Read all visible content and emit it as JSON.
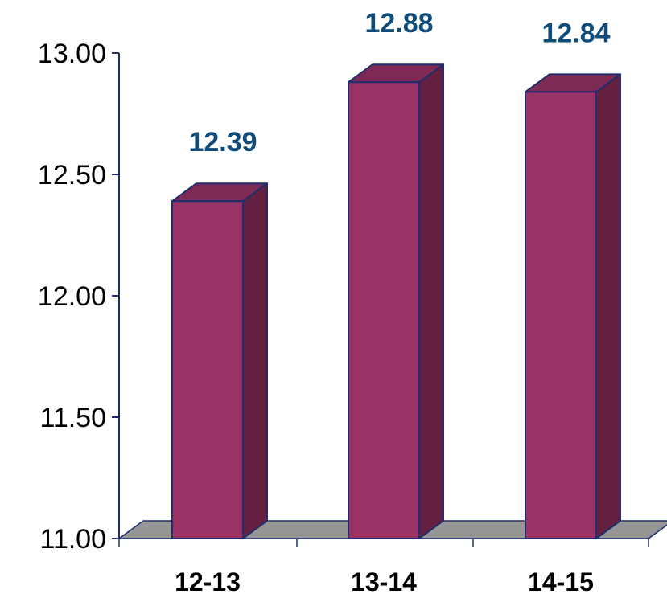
{
  "chart_data": {
    "type": "bar",
    "categories": [
      "12-13",
      "13-14",
      "14-15"
    ],
    "values": [
      12.39,
      12.88,
      12.84
    ],
    "value_labels": [
      "12.39",
      "12.88",
      "12.84"
    ],
    "y_tick_labels": [
      "11.00",
      "11.50",
      "12.00",
      "12.50",
      "13.00"
    ],
    "y_ticks": [
      11.0,
      11.5,
      12.0,
      12.5,
      13.0
    ],
    "ylim": [
      11.0,
      13.0
    ],
    "title": "",
    "xlabel": "",
    "ylabel": "",
    "grid": false,
    "legend": "none",
    "style": "3d-column"
  },
  "colors": {
    "bar_front": "#993366",
    "bar_side": "#632040",
    "bar_top": "#7e2a54",
    "bar_edge": "#1f2d6e",
    "floor": "#969696",
    "axis": "#1f2d6e",
    "value_label": "#0f4c7a"
  }
}
